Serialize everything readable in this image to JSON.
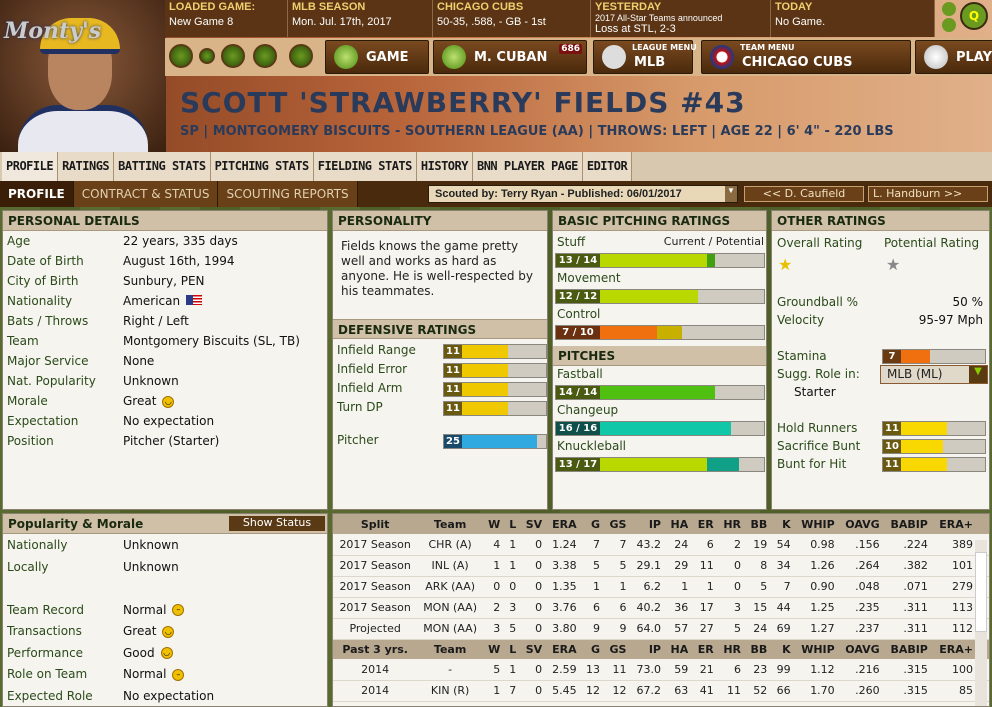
{
  "header": {
    "logo_text": "Monty's",
    "info": [
      {
        "h": "LOADED GAME:",
        "v": "New Game 8"
      },
      {
        "h": "MLB SEASON",
        "v": "Mon. Jul. 17th, 2017"
      },
      {
        "h": "CHICAGO CUBS",
        "v": "50-35, .588, - GB - 1st"
      },
      {
        "h": "YESTERDAY",
        "s": "2017 All-Star Teams announced",
        "v": "Loss at STL, 2-3"
      },
      {
        "h": "TODAY",
        "v": "No Game."
      }
    ],
    "game_label": "GAME",
    "manager_label": "M. CUBAN",
    "manager_badge": "686",
    "league_menu_small": "LEAGUE MENU",
    "league_menu_label": "MLB",
    "team_menu_small": "TEAM MENU",
    "team_menu_label": "CHICAGO CUBS",
    "play_label": "PLAY"
  },
  "player": {
    "name": "SCOTT 'STRAWBERRY' FIELDS  #43",
    "subtitle": "SP | MONTGOMERY BISCUITS - SOUTHERN LEAGUE (AA) | THROWS: LEFT | AGE 22 | 6' 4\" - 220 LBS"
  },
  "tabs": [
    "PROFILE",
    "RATINGS",
    "BATTING STATS",
    "PITCHING STATS",
    "FIELDING STATS",
    "HISTORY",
    "BNN PLAYER PAGE",
    "EDITOR"
  ],
  "subtabs": [
    "PROFILE",
    "CONTRACT & STATUS",
    "SCOUTING REPORTS"
  ],
  "scout": {
    "label": "Scouted by: Terry Ryan - Published: 06/01/2017",
    "prev": "<< D. Caufield",
    "next": "L. Handburn >>"
  },
  "personal": {
    "title": "PERSONAL DETAILS",
    "rows": [
      {
        "k": "Age",
        "v": "22 years, 335 days"
      },
      {
        "k": "Date of Birth",
        "v": "August 16th, 1994"
      },
      {
        "k": "City of Birth",
        "v": "Sunbury, PEN"
      },
      {
        "k": "Nationality",
        "v": "American"
      },
      {
        "k": "Bats / Throws",
        "v": "Right / Left"
      },
      {
        "k": "Team",
        "v": "Montgomery Biscuits (SL, TB)"
      },
      {
        "k": "Major Service",
        "v": "None"
      },
      {
        "k": "Nat. Popularity",
        "v": "Unknown"
      },
      {
        "k": "Morale",
        "v": "Great"
      },
      {
        "k": "Expectation",
        "v": "No expectation"
      },
      {
        "k": "Position",
        "v": "Pitcher (Starter)"
      }
    ]
  },
  "personality": {
    "title": "PERSONALITY",
    "text": "Fields knows the game pretty well and works as hard as anyone. He is well-respected by his teammates."
  },
  "defensive": {
    "title": "DEFENSIVE RATINGS",
    "rows": [
      {
        "k": "Infield Range",
        "v": 11,
        "color": "#f0c800"
      },
      {
        "k": "Infield Error",
        "v": 11,
        "color": "#f0c800"
      },
      {
        "k": "Infield Arm",
        "v": 11,
        "color": "#f0c800"
      },
      {
        "k": "Turn DP",
        "v": 11,
        "color": "#f0c800"
      },
      {
        "k": "Pitcher",
        "v": 25,
        "color": "#30a8e0"
      }
    ]
  },
  "basic": {
    "title": "BASIC PITCHING RATINGS",
    "header": "Current / Potential",
    "rows": [
      {
        "k": "Stuff",
        "cur": 13,
        "pot": 14,
        "color": "#b8d800",
        "pcolor": "#40a010"
      },
      {
        "k": "Movement",
        "cur": 12,
        "pot": 12,
        "color": "#b8d800",
        "pcolor": "#40a010"
      },
      {
        "k": "Control",
        "cur": 7,
        "pot": 10,
        "color": "#f07010",
        "pcolor": "#c8b000"
      }
    ]
  },
  "pitches": {
    "title": "PITCHES",
    "rows": [
      {
        "k": "Fastball",
        "cur": 14,
        "pot": 14,
        "color": "#50c010",
        "pcolor": "#50c010"
      },
      {
        "k": "Changeup",
        "cur": 16,
        "pot": 16,
        "color": "#10c8a8",
        "pcolor": "#10c8a8"
      },
      {
        "k": "Knuckleball",
        "cur": 13,
        "pot": 17,
        "color": "#b8d800",
        "pcolor": "#10a088"
      }
    ]
  },
  "other": {
    "title": "OTHER RATINGS",
    "overall_label": "Overall Rating",
    "potential_label": "Potential Rating",
    "overall_stars": 0.5,
    "potential_stars": 1,
    "groundball_label": "Groundball %",
    "groundball": "50 %",
    "velocity_label": "Velocity",
    "velocity": "95-97 Mph",
    "stamina_label": "Stamina",
    "stamina": 7,
    "role_label": "Sugg. Role in:",
    "role_select": "MLB (ML)",
    "role": "Starter",
    "bars": [
      {
        "k": "Hold Runners",
        "v": 11
      },
      {
        "k": "Sacrifice Bunt",
        "v": 10
      },
      {
        "k": "Bunt for Hit",
        "v": 11
      }
    ]
  },
  "popularity": {
    "title": "Popularity & Morale",
    "button": "Show Status",
    "rows": [
      {
        "k": "Nationally",
        "v": "Unknown"
      },
      {
        "k": "Locally",
        "v": "Unknown"
      },
      {
        "k": "",
        "v": ""
      },
      {
        "k": "Team Record",
        "v": "Normal",
        "m": "neutral"
      },
      {
        "k": "Transactions",
        "v": "Great",
        "m": "happy"
      },
      {
        "k": "Performance",
        "v": "Good",
        "m": "happy"
      },
      {
        "k": "Role on Team",
        "v": "Normal",
        "m": "neutral"
      },
      {
        "k": "Expected Role",
        "v": "No expectation"
      }
    ]
  },
  "stats": {
    "columns": [
      "Split",
      "Team",
      "W",
      "L",
      "SV",
      "ERA",
      "G",
      "GS",
      "IP",
      "HA",
      "ER",
      "HR",
      "BB",
      "K",
      "WHIP",
      "OAVG",
      "BABIP",
      "ERA+"
    ],
    "rows": [
      [
        "2017 Season",
        "CHR (A)",
        "4",
        "1",
        "0",
        "1.24",
        "7",
        "7",
        "43.2",
        "24",
        "6",
        "2",
        "19",
        "54",
        "0.98",
        ".156",
        ".224",
        "389"
      ],
      [
        "2017 Season",
        "INL (A)",
        "1",
        "1",
        "0",
        "3.38",
        "5",
        "5",
        "29.1",
        "29",
        "11",
        "0",
        "8",
        "34",
        "1.26",
        ".264",
        ".382",
        "101"
      ],
      [
        "2017 Season",
        "ARK (AA)",
        "0",
        "0",
        "0",
        "1.35",
        "1",
        "1",
        "6.2",
        "1",
        "1",
        "0",
        "5",
        "7",
        "0.90",
        ".048",
        ".071",
        "279"
      ],
      [
        "2017 Season",
        "MON (AA)",
        "2",
        "3",
        "0",
        "3.76",
        "6",
        "6",
        "40.2",
        "36",
        "17",
        "3",
        "15",
        "44",
        "1.25",
        ".235",
        ".311",
        "113"
      ],
      [
        "Projected",
        "MON (AA)",
        "3",
        "5",
        "0",
        "3.80",
        "9",
        "9",
        "64.0",
        "57",
        "27",
        "5",
        "24",
        "69",
        "1.27",
        ".237",
        ".311",
        "112"
      ]
    ],
    "columns2": [
      "Past 3 yrs.",
      "Team",
      "W",
      "L",
      "SV",
      "ERA",
      "G",
      "GS",
      "IP",
      "HA",
      "ER",
      "HR",
      "BB",
      "K",
      "WHIP",
      "OAVG",
      "BABIP",
      "ERA+"
    ],
    "rows2": [
      [
        "2014",
        "-",
        "5",
        "1",
        "0",
        "2.59",
        "13",
        "11",
        "73.0",
        "59",
        "21",
        "6",
        "23",
        "99",
        "1.12",
        ".216",
        ".315",
        "100"
      ],
      [
        "2014",
        "KIN (R)",
        "1",
        "7",
        "0",
        "5.45",
        "12",
        "12",
        "67.2",
        "63",
        "41",
        "11",
        "52",
        "66",
        "1.70",
        ".260",
        ".315",
        "85"
      ]
    ]
  }
}
